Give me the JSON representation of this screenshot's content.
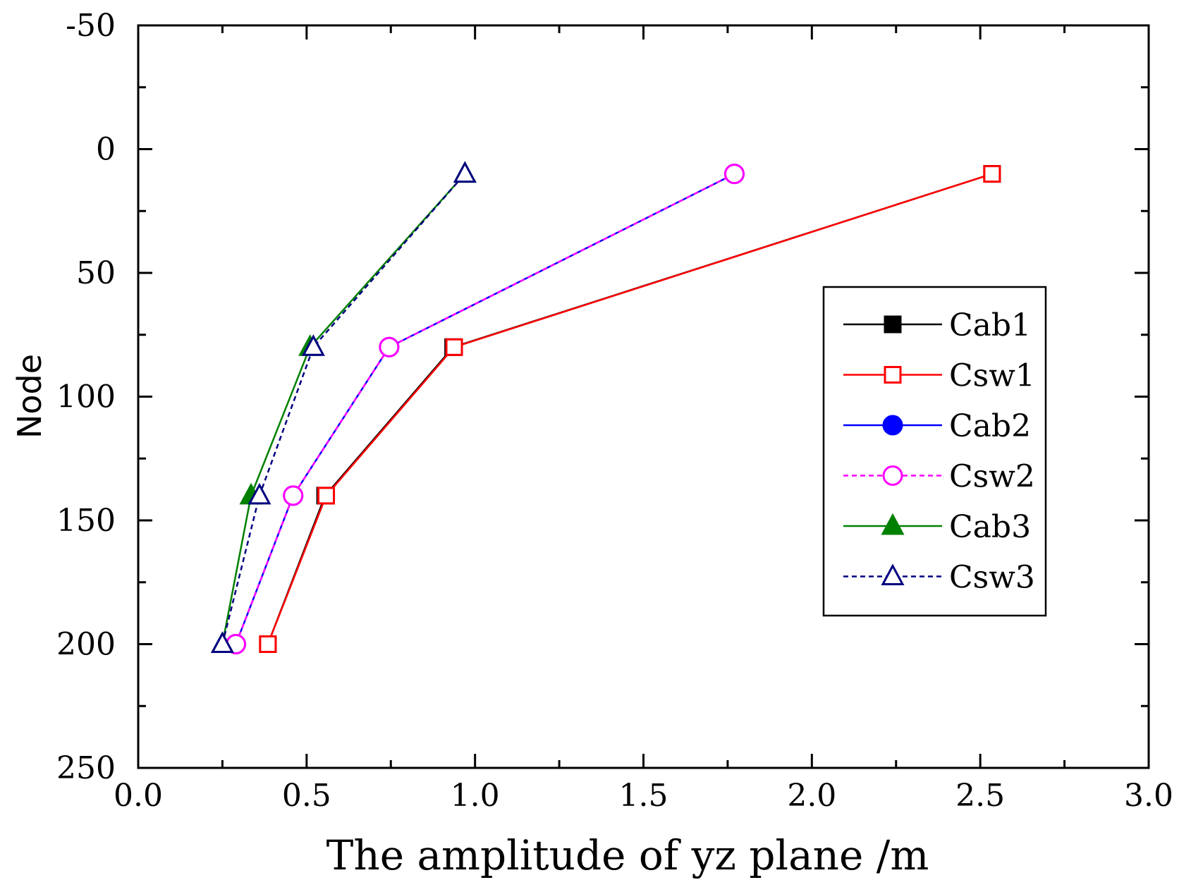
{
  "chart_data": {
    "type": "line",
    "title": "",
    "xlabel": "The amplitude of yz plane /m",
    "ylabel": "Node",
    "xlim": [
      0.0,
      3.0
    ],
    "ylim": [
      -50,
      250
    ],
    "y_inverted": true,
    "x_tick_labels": [
      "0.0",
      "0.5",
      "1.0",
      "1.5",
      "2.0",
      "2.5",
      "3.0"
    ],
    "x_ticks": [
      0.0,
      0.5,
      1.0,
      1.5,
      2.0,
      2.5,
      3.0
    ],
    "y_tick_labels": [
      "-50",
      "0",
      "50",
      "100",
      "150",
      "200",
      "250"
    ],
    "y_ticks": [
      -50,
      0,
      50,
      100,
      150,
      200,
      250
    ],
    "grid": false,
    "legend_position": "right",
    "series": [
      {
        "name": "Cab1",
        "color": "#000000",
        "dash": "solid",
        "marker": "square",
        "filled": true,
        "points": [
          [
            0.385,
            200
          ],
          [
            0.555,
            140
          ],
          [
            0.935,
            80
          ],
          [
            2.535,
            10
          ]
        ]
      },
      {
        "name": "Csw1",
        "color": "#ff0000",
        "dash": "solid",
        "marker": "square",
        "filled": false,
        "points": [
          [
            0.385,
            200
          ],
          [
            0.558,
            140
          ],
          [
            0.938,
            80
          ],
          [
            2.535,
            10
          ]
        ]
      },
      {
        "name": "Cab2",
        "color": "#0000ff",
        "dash": "solid",
        "marker": "circle",
        "filled": true,
        "points": [
          [
            0.29,
            200
          ],
          [
            0.46,
            140
          ],
          [
            0.745,
            80
          ],
          [
            1.77,
            10
          ]
        ]
      },
      {
        "name": "Csw2",
        "color": "#ff00ff",
        "dash": "dashed",
        "marker": "circle",
        "filled": false,
        "points": [
          [
            0.29,
            200
          ],
          [
            0.46,
            140
          ],
          [
            0.745,
            80
          ],
          [
            1.77,
            10
          ]
        ]
      },
      {
        "name": "Cab3",
        "color": "#008000",
        "dash": "solid",
        "marker": "triangle",
        "filled": true,
        "points": [
          [
            0.25,
            200
          ],
          [
            0.335,
            140
          ],
          [
            0.51,
            80
          ],
          [
            0.97,
            10
          ]
        ]
      },
      {
        "name": "Csw3",
        "color": "#000080",
        "dash": "dashed",
        "marker": "triangle",
        "filled": false,
        "points": [
          [
            0.25,
            200
          ],
          [
            0.36,
            140
          ],
          [
            0.52,
            80
          ],
          [
            0.97,
            10
          ]
        ]
      }
    ]
  }
}
